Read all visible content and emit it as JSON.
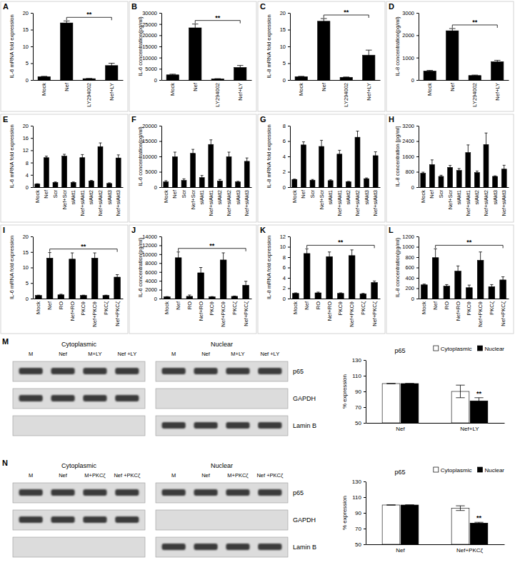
{
  "chart_data": [
    {
      "type": "bar",
      "title": "A",
      "y_label": "IL-6 mRNA fold expression",
      "categories": [
        "Mock",
        "Nef",
        "LY294002",
        "Nef+LY"
      ],
      "values": [
        1,
        17,
        0.4,
        4.3
      ],
      "errors": [
        0.1,
        0.6,
        0.05,
        0.7
      ],
      "color": "#000000",
      "ylim": [
        0,
        20
      ],
      "yticks": [
        0,
        5,
        10,
        15,
        20
      ],
      "annotations": [
        {
          "label": "**",
          "from": "Nef",
          "to": "Nef+LY"
        }
      ]
    },
    {
      "type": "bar",
      "title": "B",
      "y_label": "IL-6 concentration(pg/ml)",
      "categories": [
        "Mock",
        "Nef",
        "LY294002",
        "Nef+LY"
      ],
      "values": [
        2300,
        23300,
        500,
        5600
      ],
      "errors": [
        300,
        1700,
        100,
        900
      ],
      "color": "#000000",
      "ylim": [
        0,
        30000
      ],
      "yticks": [
        0,
        5000,
        10000,
        15000,
        20000,
        25000,
        30000
      ],
      "annotations": [
        {
          "label": "**",
          "from": "Nef",
          "to": "Nef+LY"
        }
      ]
    },
    {
      "type": "bar",
      "title": "C",
      "y_label": "IL-8 mRNA fold expression",
      "categories": [
        "Mock",
        "Nef",
        "LY294002",
        "Nef+LY"
      ],
      "values": [
        1,
        17.5,
        0.8,
        7.4
      ],
      "errors": [
        0.1,
        0.8,
        0.1,
        1.5
      ],
      "color": "#000000",
      "ylim": [
        0,
        20
      ],
      "yticks": [
        0,
        5,
        10,
        15,
        20
      ],
      "annotations": [
        {
          "label": "**",
          "from": "Nef",
          "to": "Nef+LY"
        }
      ]
    },
    {
      "type": "bar",
      "title": "D",
      "y_label": "IL-8 concentration(pg/ml)",
      "categories": [
        "Mock",
        "Nef",
        "LY294002",
        "Nef+LY"
      ],
      "values": [
        400,
        2200,
        200,
        820
      ],
      "errors": [
        30,
        100,
        20,
        60
      ],
      "color": "#000000",
      "ylim": [
        0,
        3000
      ],
      "yticks": [
        0,
        1000,
        2000,
        3000
      ],
      "annotations": [
        {
          "label": "**",
          "from": "Nef",
          "to": "Nef+LY"
        }
      ]
    },
    {
      "type": "bar",
      "title": "E",
      "y_label": "IL-6 mRNA fold expression",
      "categories": [
        "Mock",
        "Nef",
        "Scr",
        "Nef+Scr",
        "siAkt1",
        "Nef+siAkt1",
        "siAkt2",
        "Nef+siAkt2",
        "siAkt3",
        "Nef+siAkt3"
      ],
      "values": [
        1,
        9.6,
        1.5,
        10.1,
        1.5,
        9.6,
        2,
        13.2,
        1.2,
        9.5
      ],
      "errors": [
        0.1,
        0.5,
        0.2,
        0.6,
        0.2,
        1,
        0.2,
        1.2,
        0.2,
        1
      ],
      "color": "#000000",
      "ylim": [
        0,
        20
      ],
      "yticks": [
        0,
        4,
        8,
        12,
        16,
        20
      ]
    },
    {
      "type": "bar",
      "title": "F",
      "y_label": "IL-6 concentration(pg/ml)",
      "categories": [
        "Mock",
        "Nef",
        "Scr",
        "Nef+Scr",
        "siAkt1",
        "Nef+siAkt1",
        "siAkt2",
        "Nef+siAkt2",
        "siAkt3",
        "Nef+siAkt3"
      ],
      "values": [
        1700,
        9900,
        2200,
        11000,
        3100,
        13900,
        2000,
        9900,
        1700,
        8400
      ],
      "errors": [
        400,
        1500,
        500,
        1300,
        700,
        1500,
        500,
        1500,
        200,
        1100
      ],
      "color": "#000000",
      "ylim": [
        0,
        20000
      ],
      "yticks": [
        0,
        5000,
        10000,
        15000,
        20000
      ]
    },
    {
      "type": "bar",
      "title": "G",
      "y_label": "IL-8 mRNA fold expression",
      "categories": [
        "Mock",
        "Nef",
        "Scr",
        "Nef+Scr",
        "siAkt1",
        "Nef+siAkt1",
        "siAkt2",
        "Nef+siAkt2",
        "siAkt3",
        "Nef+siAkt3"
      ],
      "values": [
        1,
        5.5,
        0.9,
        5.3,
        0.85,
        4.3,
        0.7,
        6.5,
        1.1,
        4.1
      ],
      "errors": [
        0.05,
        0.4,
        0.1,
        0.8,
        0.1,
        0.5,
        0.05,
        0.8,
        0.1,
        0.5
      ],
      "color": "#000000",
      "ylim": [
        0,
        8
      ],
      "yticks": [
        0,
        2,
        4,
        6,
        8
      ]
    },
    {
      "type": "bar",
      "title": "H",
      "y_label": "IL-8 concentration [pg/ml]",
      "categories": [
        "Mock",
        "Nef",
        "Scr",
        "Nef+Scr",
        "siAkt1",
        "Nef+siAkt1",
        "siAkt2",
        "Nef+siAkt2",
        "siAkt3",
        "Nef+siAkt3"
      ],
      "values": [
        720,
        1170,
        560,
        1030,
        870,
        1800,
        760,
        2220,
        560,
        940
      ],
      "errors": [
        60,
        250,
        60,
        100,
        100,
        400,
        80,
        600,
        30,
        200
      ],
      "color": "#000000",
      "ylim": [
        0,
        3200
      ],
      "yticks": [
        0,
        800,
        1600,
        2400,
        3200
      ]
    },
    {
      "type": "bar",
      "title": "I",
      "y_label": "IL-6 mRNA fold expression",
      "categories": [
        "Mock",
        "Nef",
        "RO",
        "Nef+RO",
        "PKCθ",
        "Nef+PKCθ",
        "PKCζ",
        "Nef+PKCζ"
      ],
      "values": [
        1,
        13,
        1.2,
        12.7,
        1,
        13,
        1,
        6.9
      ],
      "errors": [
        0.1,
        1.8,
        0.2,
        2,
        0.1,
        1.7,
        0.1,
        0.8
      ],
      "color": "#000000",
      "ylim": [
        0,
        20
      ],
      "yticks": [
        0,
        5,
        10,
        15,
        20
      ],
      "annotations": [
        {
          "label": "**",
          "from": "Nef",
          "to": "Nef+PKCζ"
        }
      ]
    },
    {
      "type": "bar",
      "title": "J",
      "y_label": "IL-6 concentration(pg/ml)",
      "categories": [
        "Mock",
        "Nef",
        "RO",
        "Nef+RO",
        "PKCθ",
        "Nef+PKCθ",
        "PKCζ",
        "Nef+PKCζ"
      ],
      "values": [
        400,
        9200,
        500,
        5800,
        400,
        8700,
        500,
        3000
      ],
      "errors": [
        50,
        1300,
        300,
        1200,
        50,
        1600,
        80,
        900
      ],
      "color": "#000000",
      "ylim": [
        0,
        14000
      ],
      "yticks": [
        0,
        2000,
        4000,
        6000,
        8000,
        10000,
        12000,
        14000
      ],
      "annotations": [
        {
          "label": "**",
          "from": "Nef",
          "to": "Nef+PKCζ"
        }
      ]
    },
    {
      "type": "bar",
      "title": "K",
      "y_label": "IL-8 mRNA fold expression",
      "categories": [
        "Mock",
        "Nef",
        "RO",
        "Nef+RO",
        "PKCθ",
        "Nef+PKCθ",
        "PKCζ",
        "Nef+PKCζ"
      ],
      "values": [
        1,
        8.7,
        1.1,
        8.1,
        1,
        8.3,
        0.9,
        3.1
      ],
      "errors": [
        0.1,
        0.9,
        0.15,
        0.9,
        0.1,
        1.1,
        0.1,
        0.3
      ],
      "color": "#000000",
      "ylim": [
        0,
        12
      ],
      "yticks": [
        0,
        2,
        4,
        6,
        8,
        10,
        12
      ],
      "annotations": [
        {
          "label": "**",
          "from": "Nef",
          "to": "Nef+PKCζ"
        }
      ]
    },
    {
      "type": "bar",
      "title": "L",
      "y_label": "IL-8 concentration(pg/ml)",
      "categories": [
        "Mock",
        "Nef",
        "RO",
        "Nef+RO",
        "PKCθ",
        "Nef+PKCθ",
        "PKCζ",
        "Nef+PKCζ"
      ],
      "values": [
        265,
        790,
        240,
        530,
        210,
        740,
        230,
        360
      ],
      "errors": [
        15,
        170,
        30,
        100,
        50,
        160,
        40,
        60
      ],
      "color": "#000000",
      "ylim": [
        0,
        1200
      ],
      "yticks": [
        0,
        200,
        400,
        600,
        800,
        1000,
        1200
      ],
      "annotations": [
        {
          "label": "**",
          "from": "Nef",
          "to": "Nef+PKCζ"
        }
      ]
    },
    {
      "type": "bar",
      "title": "p65",
      "y_label": "% expression",
      "categories": [
        "Nef",
        "Nef+LY"
      ],
      "series": [
        {
          "name": "Cytoplasmic",
          "color": "#ffffff",
          "values": [
            100,
            90
          ],
          "errors": [
            0,
            8
          ]
        },
        {
          "name": "Nuclear",
          "color": "#000000",
          "values": [
            100,
            78
          ],
          "errors": [
            0,
            4
          ]
        }
      ],
      "ylim": [
        50,
        130
      ],
      "yticks": [
        50,
        70,
        90,
        110,
        130
      ],
      "legend": "top-right",
      "annotations": [
        {
          "label": "**",
          "category": "Nef+LY",
          "series": "Nuclear"
        }
      ]
    },
    {
      "type": "bar",
      "title": "p65",
      "y_label": "% expression",
      "categories": [
        "Nef",
        "Nef+PKCζ"
      ],
      "series": [
        {
          "name": "Cytoplasmic",
          "color": "#ffffff",
          "values": [
            100,
            96
          ],
          "errors": [
            0,
            3
          ]
        },
        {
          "name": "Nuclear",
          "color": "#000000",
          "values": [
            100,
            77
          ],
          "errors": [
            0,
            1
          ]
        }
      ],
      "ylim": [
        50,
        130
      ],
      "yticks": [
        50,
        70,
        90,
        110,
        130
      ],
      "legend": "top-right",
      "annotations": [
        {
          "label": "**",
          "category": "Nef+PKCζ",
          "series": "Nuclear"
        }
      ]
    }
  ],
  "blots": [
    {
      "panel": "M",
      "rows": [
        "p65",
        "GAPDH",
        "Lamin B"
      ],
      "sections": [
        {
          "title": "Cytoplasmic",
          "lanes": [
            "M",
            "Nef",
            "M+LY",
            "Nef +LY"
          ],
          "bands": [
            true,
            true,
            false
          ]
        },
        {
          "title": "Nuclear",
          "lanes": [
            "M",
            "Nef",
            "M+LY",
            "Nef +LY"
          ],
          "bands": [
            true,
            false,
            true
          ]
        }
      ]
    },
    {
      "panel": "N",
      "rows": [
        "p65",
        "GAPDH",
        "Lamin B"
      ],
      "sections": [
        {
          "title": "Cytoplasmic",
          "lanes": [
            "M",
            "Nef",
            "M+PKCζ",
            "Nef +PKCζ"
          ],
          "bands": [
            true,
            true,
            false
          ]
        },
        {
          "title": "Nuclear",
          "lanes": [
            "M",
            "Nef",
            "M+PKCζ",
            "Nef +PKCζ"
          ],
          "bands": [
            true,
            false,
            true
          ]
        }
      ]
    }
  ]
}
